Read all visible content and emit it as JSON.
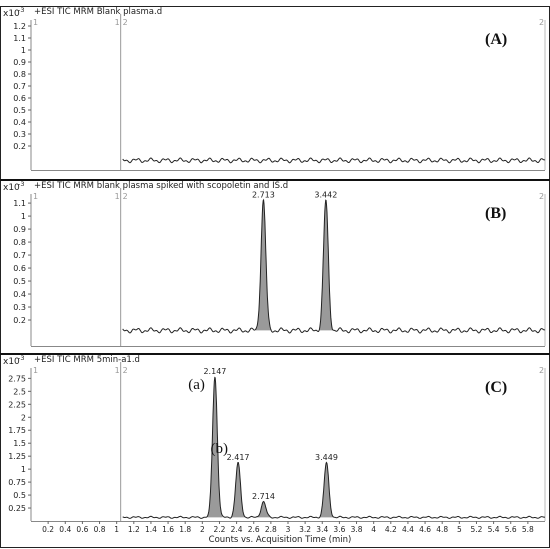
{
  "chart_data": [
    {
      "type": "line",
      "panel_label": "(A)",
      "title": "+ESI TIC MRM  Blank plasma.d",
      "scale_label": "x10",
      "scale_exp": "-3",
      "ylim": [
        0,
        1.25
      ],
      "yticks": [
        0.2,
        0.3,
        0.4,
        0.5,
        0.6,
        0.7,
        0.8,
        0.9,
        1,
        1.1,
        1.2
      ],
      "xlim": [
        0,
        6
      ],
      "segment_markers": {
        "left": "1",
        "mid_left": "1",
        "mid_right": "2",
        "right": "2"
      },
      "baseline": 0.08,
      "signal_start": 1.07,
      "peaks": [],
      "peak_labels": [],
      "peak_letters": []
    },
    {
      "type": "line",
      "panel_label": "(B)",
      "title": "+ESI TIC MRM  blank plasma spiked with scopoletin and IS.d",
      "scale_label": "x10",
      "scale_exp": "-3",
      "ylim": [
        0,
        1.17
      ],
      "yticks": [
        0.2,
        0.3,
        0.4,
        0.5,
        0.6,
        0.7,
        0.8,
        0.9,
        1,
        1.1
      ],
      "xlim": [
        0,
        6
      ],
      "segment_markers": {
        "left": "1",
        "mid_left": "1",
        "mid_right": "2",
        "right": "2"
      },
      "baseline": 0.12,
      "signal_start": 1.07,
      "peaks": [
        {
          "rt": 2.713,
          "height": 1.12
        },
        {
          "rt": 3.442,
          "height": 1.12
        }
      ],
      "peak_labels": [
        "2.713",
        "3.442"
      ],
      "peak_letters": []
    },
    {
      "type": "line",
      "panel_label": "(C)",
      "title": "+ESI TIC MRM  5min-a1.d",
      "scale_label": "x10",
      "scale_exp": "-3",
      "ylim": [
        0,
        2.95
      ],
      "yticks": [
        0.25,
        0.5,
        0.75,
        1,
        1.25,
        1.5,
        1.75,
        2,
        2.25,
        2.5,
        2.75
      ],
      "xlim": [
        0,
        6
      ],
      "segment_markers": {
        "left": "1",
        "mid_left": "1",
        "mid_right": "2",
        "right": "2"
      },
      "baseline": 0.07,
      "signal_start": 1.07,
      "peaks": [
        {
          "rt": 2.147,
          "height": 2.78
        },
        {
          "rt": 2.417,
          "height": 1.12
        },
        {
          "rt": 2.714,
          "height": 0.37
        },
        {
          "rt": 3.449,
          "height": 1.12
        }
      ],
      "peak_labels": [
        "2.147",
        "2.417",
        "2.714",
        "3.449"
      ],
      "peak_letters": [
        {
          "text": "(a)",
          "rt": 2.147
        },
        {
          "text": "(b)",
          "rt": 2.417
        }
      ],
      "xticks": [
        0.2,
        0.4,
        0.6,
        0.8,
        1,
        1.2,
        1.4,
        1.6,
        1.8,
        2,
        2.2,
        2.4,
        2.6,
        2.8,
        3,
        3.2,
        3.4,
        3.6,
        3.8,
        4,
        4.2,
        4.4,
        4.6,
        4.8,
        5,
        5.2,
        5.4,
        5.6,
        5.8
      ],
      "xlabel": "Counts vs. Acquisition Time (min)"
    }
  ]
}
